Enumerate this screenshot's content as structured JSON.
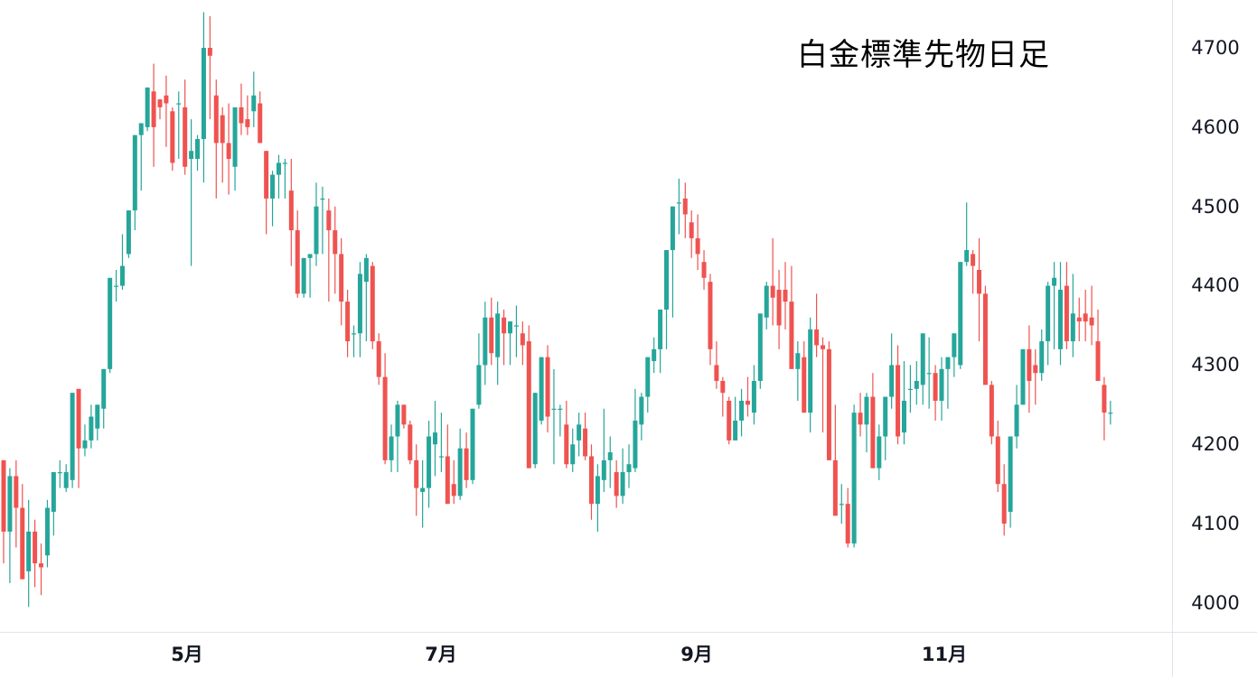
{
  "chart_data": {
    "type": "candlestick",
    "title": "白金標準先物日足",
    "xlabel": "",
    "ylabel": "",
    "ylim": [
      3960,
      4745
    ],
    "price_ticks": [
      4700,
      4600,
      4500,
      4400,
      4300,
      4200,
      4100,
      4000
    ],
    "month_ticks": [
      {
        "label": "5月",
        "x": 207
      },
      {
        "label": "7月",
        "x": 488
      },
      {
        "label": "9月",
        "x": 771
      },
      {
        "label": "11月",
        "x": 1045
      }
    ],
    "grid": false,
    "colors": {
      "up": "#26a69a",
      "down": "#ef5350",
      "axis_text": "#131722",
      "axis_border": "#e0e3eb"
    },
    "candles": [
      [
        4180,
        4180,
        4050,
        4090
      ],
      [
        4090,
        4170,
        4025,
        4160
      ],
      [
        4160,
        4180,
        4070,
        4120
      ],
      [
        4120,
        4150,
        4060,
        4030
      ],
      [
        4040,
        4130,
        3995,
        4090
      ],
      [
        4090,
        4105,
        4020,
        4050
      ],
      [
        4050,
        4075,
        4010,
        4045
      ],
      [
        4060,
        4130,
        4045,
        4120
      ],
      [
        4115,
        4165,
        4085,
        4165
      ],
      [
        4165,
        4180,
        4145,
        4165
      ],
      [
        4145,
        4175,
        4140,
        4165
      ],
      [
        4155,
        4265,
        4145,
        4265
      ],
      [
        4270,
        4270,
        4145,
        4195
      ],
      [
        4195,
        4225,
        4185,
        4205
      ],
      [
        4205,
        4250,
        4195,
        4235
      ],
      [
        4220,
        4245,
        4205,
        4250
      ],
      [
        4245,
        4270,
        4220,
        4295
      ],
      [
        4295,
        4330,
        4290,
        4410
      ],
      [
        4400,
        4420,
        4380,
        4400
      ],
      [
        4400,
        4465,
        4395,
        4425
      ],
      [
        4440,
        4470,
        4435,
        4495
      ],
      [
        4495,
        4575,
        4470,
        4590
      ],
      [
        4590,
        4595,
        4520,
        4605
      ],
      [
        4600,
        4650,
        4595,
        4650
      ],
      [
        4645,
        4680,
        4550,
        4600
      ],
      [
        4635,
        4615,
        4610,
        4625
      ],
      [
        4640,
        4665,
        4575,
        4630
      ],
      [
        4620,
        4625,
        4545,
        4555
      ],
      [
        4630,
        4645,
        4560,
        4630
      ],
      [
        4625,
        4660,
        4540,
        4550
      ],
      [
        4560,
        4610,
        4425,
        4570
      ],
      [
        4560,
        4590,
        4545,
        4585
      ],
      [
        4585,
        4745,
        4530,
        4700
      ],
      [
        4700,
        4740,
        4610,
        4690
      ],
      [
        4640,
        4660,
        4510,
        4580
      ],
      [
        4615,
        4625,
        4530,
        4580
      ],
      [
        4580,
        4630,
        4515,
        4560
      ],
      [
        4550,
        4600,
        4520,
        4625
      ],
      [
        4625,
        4655,
        4590,
        4605
      ],
      [
        4610,
        4640,
        4590,
        4600
      ],
      [
        4620,
        4670,
        4600,
        4640
      ],
      [
        4630,
        4645,
        4580,
        4580
      ],
      [
        4570,
        4570,
        4465,
        4510
      ],
      [
        4510,
        4545,
        4475,
        4540
      ],
      [
        4540,
        4565,
        4510,
        4555
      ],
      [
        4555,
        4560,
        4510,
        4555
      ],
      [
        4520,
        4560,
        4425,
        4470
      ],
      [
        4470,
        4495,
        4385,
        4390
      ],
      [
        4390,
        4430,
        4385,
        4435
      ],
      [
        4435,
        4440,
        4385,
        4440
      ],
      [
        4440,
        4530,
        4425,
        4500
      ],
      [
        4510,
        4525,
        4440,
        4510
      ],
      [
        4495,
        4510,
        4380,
        4470
      ],
      [
        4470,
        4500,
        4390,
        4440
      ],
      [
        4440,
        4460,
        4350,
        4380
      ],
      [
        4380,
        4395,
        4310,
        4330
      ],
      [
        4340,
        4350,
        4310,
        4340
      ],
      [
        4340,
        4430,
        4310,
        4415
      ],
      [
        4405,
        4440,
        4330,
        4435
      ],
      [
        4425,
        4430,
        4320,
        4330
      ],
      [
        4330,
        4340,
        4275,
        4285
      ],
      [
        4285,
        4315,
        4175,
        4180
      ],
      [
        4180,
        4225,
        4165,
        4210
      ],
      [
        4210,
        4255,
        4165,
        4250
      ],
      [
        4250,
        4245,
        4220,
        4225
      ],
      [
        4225,
        4230,
        4175,
        4180
      ],
      [
        4180,
        4200,
        4110,
        4145
      ],
      [
        4140,
        4180,
        4095,
        4145
      ],
      [
        4145,
        4230,
        4120,
        4210
      ],
      [
        4200,
        4255,
        4160,
        4215
      ],
      [
        4185,
        4240,
        4165,
        4185
      ],
      [
        4185,
        4225,
        4130,
        4125
      ],
      [
        4150,
        4180,
        4125,
        4135
      ],
      [
        4135,
        4220,
        4130,
        4195
      ],
      [
        4195,
        4215,
        4145,
        4155
      ],
      [
        4155,
        4245,
        4150,
        4245
      ],
      [
        4250,
        4340,
        4245,
        4300
      ],
      [
        4300,
        4380,
        4275,
        4360
      ],
      [
        4360,
        4385,
        4300,
        4315
      ],
      [
        4310,
        4380,
        4275,
        4365
      ],
      [
        4360,
        4370,
        4300,
        4340
      ],
      [
        4340,
        4355,
        4300,
        4355
      ],
      [
        4350,
        4375,
        4310,
        4350
      ],
      [
        4340,
        4355,
        4300,
        4325
      ],
      [
        4330,
        4350,
        4195,
        4170
      ],
      [
        4175,
        4255,
        4170,
        4265
      ],
      [
        4230,
        4300,
        4225,
        4310
      ],
      [
        4310,
        4325,
        4215,
        4235
      ],
      [
        4245,
        4295,
        4175,
        4245
      ],
      [
        4245,
        4250,
        4210,
        4245
      ],
      [
        4225,
        4255,
        4170,
        4175
      ],
      [
        4175,
        4220,
        4165,
        4200
      ],
      [
        4205,
        4240,
        4185,
        4225
      ],
      [
        4220,
        4240,
        4180,
        4185
      ],
      [
        4185,
        4200,
        4105,
        4125
      ],
      [
        4125,
        4175,
        4090,
        4160
      ],
      [
        4155,
        4245,
        4140,
        4180
      ],
      [
        4180,
        4210,
        4145,
        4190
      ],
      [
        4165,
        4180,
        4120,
        4135
      ],
      [
        4135,
        4195,
        4125,
        4165
      ],
      [
        4165,
        4200,
        4145,
        4175
      ],
      [
        4170,
        4270,
        4165,
        4230
      ],
      [
        4225,
        4265,
        4205,
        4260
      ],
      [
        4260,
        4310,
        4240,
        4310
      ],
      [
        4305,
        4335,
        4290,
        4320
      ],
      [
        4320,
        4355,
        4290,
        4370
      ],
      [
        4370,
        4390,
        4320,
        4445
      ],
      [
        4445,
        4470,
        4360,
        4500
      ],
      [
        4505,
        4535,
        4465,
        4505
      ],
      [
        4510,
        4530,
        4460,
        4490
      ],
      [
        4480,
        4495,
        4435,
        4460
      ],
      [
        4460,
        4490,
        4420,
        4440
      ],
      [
        4430,
        4445,
        4395,
        4410
      ],
      [
        4405,
        4415,
        4300,
        4320
      ],
      [
        4300,
        4330,
        4270,
        4280
      ],
      [
        4280,
        4285,
        4235,
        4265
      ],
      [
        4255,
        4260,
        4200,
        4205
      ],
      [
        4205,
        4260,
        4210,
        4230
      ],
      [
        4230,
        4270,
        4210,
        4255
      ],
      [
        4255,
        4285,
        4235,
        4250
      ],
      [
        4240,
        4300,
        4225,
        4280
      ],
      [
        4280,
        4325,
        4270,
        4365
      ],
      [
        4360,
        4405,
        4345,
        4400
      ],
      [
        4400,
        4460,
        4350,
        4385
      ],
      [
        4395,
        4420,
        4320,
        4350
      ],
      [
        4395,
        4430,
        4345,
        4380
      ],
      [
        4380,
        4425,
        4330,
        4295
      ],
      [
        4295,
        4330,
        4255,
        4315
      ],
      [
        4310,
        4330,
        4240,
        4240
      ],
      [
        4240,
        4360,
        4215,
        4345
      ],
      [
        4345,
        4390,
        4310,
        4325
      ],
      [
        4325,
        4335,
        4215,
        4320
      ],
      [
        4320,
        4330,
        4180,
        4180
      ],
      [
        4180,
        4250,
        4115,
        4110
      ],
      [
        4125,
        4150,
        4100,
        4125
      ],
      [
        4125,
        4145,
        4070,
        4075
      ],
      [
        4075,
        4250,
        4070,
        4240
      ],
      [
        4240,
        4265,
        4210,
        4225
      ],
      [
        4225,
        4265,
        4190,
        4260
      ],
      [
        4260,
        4290,
        4175,
        4170
      ],
      [
        4170,
        4225,
        4155,
        4210
      ],
      [
        4210,
        4255,
        4180,
        4260
      ],
      [
        4260,
        4340,
        4245,
        4300
      ],
      [
        4300,
        4325,
        4200,
        4210
      ],
      [
        4215,
        4305,
        4200,
        4255
      ],
      [
        4270,
        4300,
        4240,
        4270
      ],
      [
        4270,
        4305,
        4250,
        4280
      ],
      [
        4275,
        4340,
        4250,
        4340
      ],
      [
        4290,
        4335,
        4245,
        4290
      ],
      [
        4290,
        4300,
        4230,
        4255
      ],
      [
        4255,
        4310,
        4230,
        4295
      ],
      [
        4295,
        4310,
        4245,
        4310
      ],
      [
        4310,
        4340,
        4285,
        4340
      ],
      [
        4300,
        4330,
        4295,
        4430
      ],
      [
        4430,
        4505,
        4425,
        4445
      ],
      [
        4440,
        4445,
        4390,
        4425
      ],
      [
        4420,
        4460,
        4330,
        4390
      ],
      [
        4390,
        4400,
        4285,
        4275
      ],
      [
        4275,
        4280,
        4200,
        4210
      ],
      [
        4210,
        4230,
        4140,
        4150
      ],
      [
        4150,
        4175,
        4085,
        4100
      ],
      [
        4115,
        4210,
        4095,
        4210
      ],
      [
        4210,
        4275,
        4195,
        4250
      ],
      [
        4250,
        4310,
        4255,
        4320
      ],
      [
        4320,
        4350,
        4240,
        4280
      ],
      [
        4300,
        4320,
        4250,
        4290
      ],
      [
        4290,
        4345,
        4280,
        4330
      ],
      [
        4330,
        4405,
        4300,
        4400
      ],
      [
        4400,
        4430,
        4320,
        4410
      ],
      [
        4320,
        4430,
        4300,
        4395
      ],
      [
        4400,
        4430,
        4320,
        4330
      ],
      [
        4330,
        4415,
        4310,
        4365
      ],
      [
        4360,
        4385,
        4330,
        4355
      ],
      [
        4365,
        4395,
        4330,
        4355
      ],
      [
        4360,
        4400,
        4325,
        4350
      ],
      [
        4330,
        4370,
        4280,
        4280
      ],
      [
        4275,
        4285,
        4205,
        4240
      ],
      [
        4240,
        4255,
        4225,
        4240
      ]
    ]
  },
  "header": {
    "title": "白金標準先物日足"
  },
  "axis": {
    "price_labels": [
      "4700",
      "4600",
      "4500",
      "4400",
      "4300",
      "4200",
      "4100",
      "4000"
    ],
    "time_labels": [
      "5月",
      "7月",
      "9月",
      "11月"
    ]
  }
}
